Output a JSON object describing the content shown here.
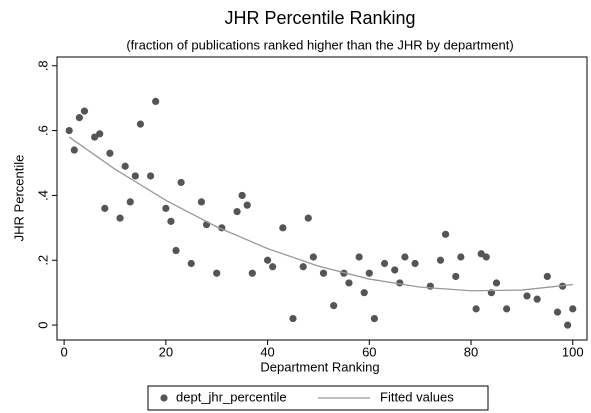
{
  "chart_data": {
    "type": "scatter",
    "title": "JHR Percentile Ranking",
    "subtitle": "(fraction of publications ranked higher than the JHR by department)",
    "xlabel": "Department Ranking",
    "ylabel": "JHR Percentile",
    "xlim": [
      -1.4,
      102.8
    ],
    "ylim": [
      -0.046,
      0.827
    ],
    "xticks": [
      0,
      20,
      40,
      60,
      80,
      100
    ],
    "yticks": [
      0,
      {
        "value": 0.2,
        "label": ".2"
      },
      {
        "value": 0.4,
        "label": ".4"
      },
      {
        "value": 0.6,
        "label": ".6"
      },
      {
        "value": 0.8,
        "label": ".8"
      }
    ],
    "series": [
      {
        "name": "dept_jhr_percentile",
        "type": "scatter",
        "color": "#555555",
        "x": [
          1,
          2,
          3,
          4,
          6,
          7,
          8,
          9,
          11,
          12,
          13,
          14,
          15,
          17,
          18,
          20,
          21,
          22,
          23,
          25,
          27,
          28,
          30,
          31,
          34,
          35,
          36,
          37,
          40,
          41,
          43,
          45,
          47,
          48,
          49,
          51,
          53,
          55,
          56,
          58,
          59,
          60,
          61,
          63,
          65,
          66,
          67,
          69,
          72,
          74,
          75,
          77,
          78,
          81,
          82,
          83,
          84,
          85,
          87,
          91,
          93,
          95,
          97,
          98,
          99,
          100
        ],
        "values": [
          0.6,
          0.54,
          0.64,
          0.66,
          0.58,
          0.59,
          0.36,
          0.53,
          0.33,
          0.49,
          0.38,
          0.46,
          0.62,
          0.46,
          0.69,
          0.36,
          0.32,
          0.23,
          0.44,
          0.19,
          0.38,
          0.31,
          0.16,
          0.3,
          0.35,
          0.4,
          0.37,
          0.16,
          0.2,
          0.18,
          0.3,
          0.02,
          0.18,
          0.33,
          0.21,
          0.16,
          0.06,
          0.16,
          0.13,
          0.21,
          0.1,
          0.16,
          0.02,
          0.19,
          0.17,
          0.13,
          0.21,
          0.19,
          0.12,
          0.2,
          0.28,
          0.15,
          0.21,
          0.05,
          0.22,
          0.21,
          0.1,
          0.13,
          0.05,
          0.09,
          0.08,
          0.15,
          0.04,
          0.12,
          0,
          0.05
        ]
      },
      {
        "name": "Fitted values",
        "type": "line",
        "color": "#999999",
        "x": [
          1,
          10,
          20,
          30,
          40,
          50,
          60,
          70,
          80,
          90,
          100
        ],
        "values": [
          0.58,
          0.481,
          0.385,
          0.303,
          0.236,
          0.182,
          0.142,
          0.117,
          0.106,
          0.108,
          0.125
        ]
      }
    ]
  }
}
